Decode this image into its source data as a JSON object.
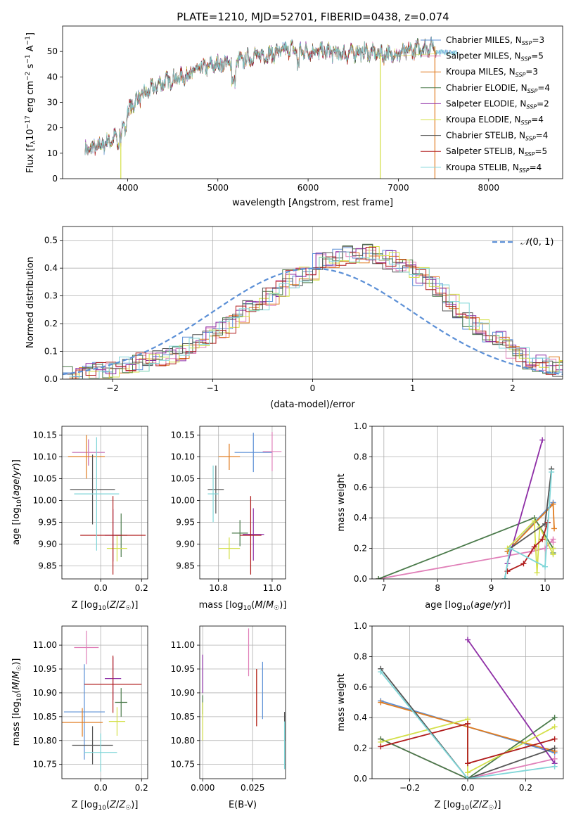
{
  "figure_title": "PLATE=1210, MJD=52701, FIBERID=0438, z=0.074",
  "colors": {
    "Chabrier MILES": "#5b8fd6",
    "Salpeter MILES": "#e07fb8",
    "Kroupa MILES": "#e07c20",
    "Chabrier ELODIE": "#4a7a4a",
    "Salpeter ELODIE": "#8e2ea6",
    "Kroupa ELODIE": "#d4e04a",
    "Chabrier STELIB": "#555555",
    "Salpeter STELIB": "#b01c1c",
    "Kroupa STELIB": "#7fd6d8"
  },
  "chart_data": [
    {
      "id": "spectrum",
      "type": "line",
      "title": "PLATE=1210, MJD=52701, FIBERID=0438, z=0.074",
      "xlabel": "wavelength [Angstrom, rest frame]",
      "ylabel": "Flux [f_λ 10^-17 erg cm^-2 s^-1 A^-1]",
      "xlim": [
        3280,
        8820
      ],
      "ylim": [
        0,
        60
      ],
      "xticks": [
        4000,
        5000,
        6000,
        7000,
        8000
      ],
      "yticks": [
        0,
        10,
        20,
        30,
        40,
        50
      ],
      "legend_position": "top-right",
      "series": [
        {
          "name": "Chabrier MILES, N_SSP=3"
        },
        {
          "name": "Salpeter MILES, N_SSP=5"
        },
        {
          "name": "Kroupa MILES, N_SSP=3"
        },
        {
          "name": "Chabrier ELODIE, N_SSP=4"
        },
        {
          "name": "Salpeter ELODIE, N_SSP=2"
        },
        {
          "name": "Kroupa ELODIE, N_SSP=4"
        },
        {
          "name": "Chabrier STELIB, N_SSP=4"
        },
        {
          "name": "Salpeter STELIB, N_SSP=5"
        },
        {
          "name": "Kroupa STELIB, N_SSP=4"
        }
      ],
      "continuum": {
        "x": [
          3530,
          3700,
          3900,
          4000,
          4100,
          4250,
          4400,
          4600,
          4800,
          5000,
          5200,
          5400,
          5600,
          5800,
          6000,
          6200,
          6400,
          6600,
          6800,
          7000,
          7200,
          7400,
          7700,
          8000,
          8300,
          8700
        ],
        "y": [
          11,
          13,
          17,
          26,
          31,
          35,
          38,
          40,
          43,
          45,
          46,
          48,
          49,
          51,
          50,
          50,
          49,
          50,
          49,
          49,
          51,
          52,
          53,
          54,
          54,
          55
        ]
      },
      "dips": [
        [
          3930,
          4
        ],
        [
          5175,
          30
        ],
        [
          5890,
          44
        ],
        [
          6800,
          0
        ],
        [
          7400,
          0
        ]
      ]
    },
    {
      "id": "residuals",
      "type": "line",
      "xlabel": "(data-model)/error",
      "ylabel": "Normed distribution",
      "xlim": [
        -2.5,
        2.5
      ],
      "ylim": [
        0,
        0.55
      ],
      "xticks": [
        -2,
        -1,
        0,
        1,
        2
      ],
      "yticks": [
        0.0,
        0.1,
        0.2,
        0.3,
        0.4,
        0.5
      ],
      "legend": "N(0,1)",
      "hist_bin_width": 0.1,
      "hist_base": [
        0.02,
        0.02,
        0.025,
        0.03,
        0.04,
        0.05,
        0.05,
        0.06,
        0.07,
        0.08,
        0.09,
        0.1,
        0.12,
        0.14,
        0.16,
        0.18,
        0.2,
        0.23,
        0.26,
        0.28,
        0.3,
        0.33,
        0.36,
        0.37,
        0.38,
        0.42,
        0.43,
        0.44,
        0.45,
        0.44,
        0.46,
        0.45,
        0.43,
        0.41,
        0.4,
        0.37,
        0.35,
        0.31,
        0.28,
        0.24,
        0.21,
        0.18,
        0.16,
        0.14,
        0.11,
        0.09,
        0.07,
        0.06,
        0.05,
        0.04
      ],
      "hist_x0": -2.5
    },
    {
      "id": "age-vs-Z",
      "type": "scatter",
      "xlabel": "Z [log10(Z/Z☉)]",
      "ylabel": "age  [log10(age/yr)]",
      "xlim": [
        -0.19,
        0.23
      ],
      "ylim": [
        9.82,
        10.17
      ],
      "xticks": [
        -0.2,
        0.0,
        0.2
      ],
      "xticklabels": [
        "",
        "0.0",
        "0.2"
      ],
      "yticks": [
        9.85,
        9.9,
        9.95,
        10.0,
        10.05,
        10.1,
        10.15
      ],
      "points": [
        {
          "series": "Chabrier MILES",
          "x": -0.06,
          "y": 10.11,
          "xerr": 0.08,
          "yerr": 0.03
        },
        {
          "series": "Salpeter MILES",
          "x": -0.06,
          "y": 10.11,
          "xerr": 0.08,
          "yerr": 0.03
        },
        {
          "series": "Kroupa MILES",
          "x": -0.07,
          "y": 10.1,
          "xerr": 0.09,
          "yerr": 0.05
        },
        {
          "series": "Chabrier ELODIE",
          "x": 0.1,
          "y": 9.92,
          "xerr": 0.03,
          "yerr": 0.05
        },
        {
          "series": "Salpeter ELODIE",
          "x": 0.06,
          "y": 9.92,
          "xerr": 0.04,
          "yerr": 0.06
        },
        {
          "series": "Kroupa ELODIE",
          "x": 0.08,
          "y": 9.89,
          "xerr": 0.05,
          "yerr": 0.03
        },
        {
          "series": "Chabrier STELIB",
          "x": -0.04,
          "y": 10.025,
          "xerr": 0.11,
          "yerr": 0.08
        },
        {
          "series": "Salpeter STELIB",
          "x": 0.06,
          "y": 9.92,
          "xerr": 0.16,
          "yerr": 0.09
        },
        {
          "series": "Kroupa STELIB",
          "x": -0.02,
          "y": 10.015,
          "xerr": 0.11,
          "yerr": 0.13
        }
      ]
    },
    {
      "id": "age-vs-mass",
      "type": "scatter",
      "xlabel": "mass [log10(M/M☉)]",
      "xlim": [
        10.73,
        11.05
      ],
      "ylim": [
        9.82,
        10.17
      ],
      "xticks": [
        10.8,
        11.0
      ],
      "yticks": [
        9.85,
        9.9,
        9.95,
        10.0,
        10.05,
        10.1,
        10.15
      ],
      "points": [
        {
          "series": "Chabrier MILES",
          "x": 10.93,
          "y": 10.11,
          "xerr": 0.07,
          "yerr": 0.045
        },
        {
          "series": "Salpeter MILES",
          "x": 11.0,
          "y": 10.112,
          "xerr": 0.035,
          "yerr": 0.045
        },
        {
          "series": "Kroupa MILES",
          "x": 10.84,
          "y": 10.1,
          "xerr": 0.04,
          "yerr": 0.03
        },
        {
          "series": "Chabrier ELODIE",
          "x": 10.88,
          "y": 9.925,
          "xerr": 0.03,
          "yerr": 0.03
        },
        {
          "series": "Salpeter ELODIE",
          "x": 10.93,
          "y": 9.922,
          "xerr": 0.04,
          "yerr": 0.06
        },
        {
          "series": "Kroupa ELODIE",
          "x": 10.84,
          "y": 9.89,
          "xerr": 0.04,
          "yerr": 0.025
        },
        {
          "series": "Chabrier STELIB",
          "x": 10.79,
          "y": 10.025,
          "xerr": 0.03,
          "yerr": 0.055
        },
        {
          "series": "Salpeter STELIB",
          "x": 10.92,
          "y": 9.92,
          "xerr": 0.04,
          "yerr": 0.09
        },
        {
          "series": "Kroupa STELIB",
          "x": 10.78,
          "y": 10.015,
          "xerr": 0.02,
          "yerr": 0.065
        }
      ]
    },
    {
      "id": "weight-vs-age",
      "type": "line",
      "xlabel": "age  [log10(age/yr)]",
      "ylabel": "mass weight",
      "xlim": [
        6.78,
        10.34
      ],
      "ylim": [
        0,
        1.0
      ],
      "xticks": [
        7,
        8,
        9,
        10
      ],
      "yticks": [
        0.0,
        0.2,
        0.4,
        0.6,
        0.8,
        1.0
      ],
      "series": [
        {
          "name": "Chabrier MILES",
          "x": [
            9.3,
            10.15
          ],
          "y": [
            0.18,
            0.5
          ]
        },
        {
          "name": "Salpeter MILES",
          "x": [
            6.9,
            9.75,
            10.0,
            10.15,
            10.15
          ],
          "y": [
            0.0,
            0.18,
            0.2,
            0.26,
            0.24
          ]
        },
        {
          "name": "Kroupa MILES",
          "x": [
            9.3,
            10.15,
            10.17
          ],
          "y": [
            0.18,
            0.49,
            0.33
          ]
        },
        {
          "name": "Chabrier ELODIE",
          "x": [
            6.9,
            9.8,
            10.15,
            10.15
          ],
          "y": [
            0.0,
            0.4,
            0.2,
            0.17
          ]
        },
        {
          "name": "Salpeter ELODIE",
          "x": [
            9.3,
            9.95
          ],
          "y": [
            0.1,
            0.91
          ]
        },
        {
          "name": "Kroupa ELODIE",
          "x": [
            9.3,
            9.8,
            9.85,
            9.9,
            10.15,
            10.15
          ],
          "y": [
            0.2,
            0.38,
            0.04,
            0.34,
            0.16,
            0.2
          ]
        },
        {
          "name": "Chabrier STELIB",
          "x": [
            9.25,
            9.35,
            10.0,
            10.12
          ],
          "y": [
            0.0,
            0.2,
            0.36,
            0.72
          ]
        },
        {
          "name": "Salpeter STELIB",
          "x": [
            9.3,
            9.6,
            9.8,
            9.95,
            10.05
          ],
          "y": [
            0.05,
            0.1,
            0.21,
            0.26,
            0.37
          ]
        },
        {
          "name": "Kroupa STELIB",
          "x": [
            9.25,
            9.35,
            10.0,
            10.12
          ],
          "y": [
            0.0,
            0.2,
            0.08,
            0.7
          ]
        }
      ]
    },
    {
      "id": "mass-vs-Z",
      "type": "scatter",
      "xlabel": "Z [log10(Z/Z☉)]",
      "ylabel": "mass [log10(M/M☉)]",
      "xlim": [
        -0.19,
        0.23
      ],
      "ylim": [
        10.72,
        11.04
      ],
      "xticks": [
        -0.2,
        0.0,
        0.2
      ],
      "xticklabels": [
        "",
        "0.0",
        "0.2"
      ],
      "yticks": [
        10.75,
        10.8,
        10.85,
        10.9,
        10.95,
        11.0
      ],
      "points": [
        {
          "series": "Chabrier MILES",
          "x": -0.08,
          "y": 10.86,
          "xerr": 0.1,
          "yerr": 0.1
        },
        {
          "series": "Salpeter MILES",
          "x": -0.07,
          "y": 10.995,
          "xerr": 0.06,
          "yerr": 0.035
        },
        {
          "series": "Kroupa MILES",
          "x": -0.09,
          "y": 10.838,
          "xerr": 0.1,
          "yerr": 0.03
        },
        {
          "series": "Chabrier ELODIE",
          "x": 0.1,
          "y": 10.88,
          "xerr": 0.03,
          "yerr": 0.03
        },
        {
          "series": "Salpeter ELODIE",
          "x": 0.06,
          "y": 10.93,
          "xerr": 0.04,
          "yerr": 0.045
        },
        {
          "series": "Kroupa ELODIE",
          "x": 0.08,
          "y": 10.84,
          "xerr": 0.04,
          "yerr": 0.03
        },
        {
          "series": "Chabrier STELIB",
          "x": -0.04,
          "y": 10.79,
          "xerr": 0.1,
          "yerr": 0.04
        },
        {
          "series": "Salpeter STELIB",
          "x": 0.06,
          "y": 10.918,
          "xerr": 0.14,
          "yerr": 0.06
        },
        {
          "series": "Kroupa STELIB",
          "x": 0.0,
          "y": 10.775,
          "xerr": 0.08,
          "yerr": 0.04
        }
      ]
    },
    {
      "id": "mass-vs-ebv",
      "type": "scatter",
      "xlabel": "E(B-V)",
      "xlim": [
        -0.0015,
        0.0415
      ],
      "ylim": [
        10.72,
        11.04
      ],
      "xticks": [
        0.0,
        0.025
      ],
      "yticks": [
        10.75,
        10.8,
        10.85,
        10.9,
        10.95,
        11.0
      ],
      "points": [
        {
          "series": "Chabrier MILES",
          "x": 0.03,
          "y": 10.905,
          "xerr": 0,
          "yerr": 0.06
        },
        {
          "series": "Salpeter MILES",
          "x": 0.023,
          "y": 10.985,
          "xerr": 0,
          "yerr": 0.05
        },
        {
          "series": "Kroupa MILES",
          "x": 0.027,
          "y": 10.89,
          "xerr": 0,
          "yerr": 0.06
        },
        {
          "series": "Chabrier ELODIE",
          "x": 0.0,
          "y": 10.875,
          "xerr": 0,
          "yerr": 0.02
        },
        {
          "series": "Salpeter ELODIE",
          "x": 0.0,
          "y": 10.94,
          "xerr": 0,
          "yerr": 0.04
        },
        {
          "series": "Kroupa ELODIE",
          "x": 0.0,
          "y": 10.84,
          "xerr": 0,
          "yerr": 0.04
        },
        {
          "series": "Chabrier STELIB",
          "x": 0.041,
          "y": 10.83,
          "xerr": 0,
          "yerr": 0.03
        },
        {
          "series": "Salpeter STELIB",
          "x": 0.027,
          "y": 10.89,
          "xerr": 0,
          "yerr": 0.06
        },
        {
          "series": "Kroupa STELIB",
          "x": 0.041,
          "y": 10.79,
          "xerr": 0,
          "yerr": 0.05
        }
      ]
    },
    {
      "id": "weight-vs-Z",
      "type": "line",
      "xlabel": "Z [log10(Z/Z☉)]",
      "ylabel": "mass weight",
      "xlim": [
        -0.33,
        0.33
      ],
      "ylim": [
        0,
        1.0
      ],
      "xticks": [
        -0.2,
        0.0,
        0.2
      ],
      "yticks": [
        0.0,
        0.2,
        0.4,
        0.6,
        0.8,
        1.0
      ],
      "series": [
        {
          "name": "Chabrier MILES",
          "x": [
            -0.3,
            0.3
          ],
          "y": [
            0.51,
            0.17
          ]
        },
        {
          "name": "Salpeter MILES",
          "x": [
            -0.3,
            0.0,
            0.3
          ],
          "y": [
            0.26,
            0.0,
            0.13
          ]
        },
        {
          "name": "Kroupa MILES",
          "x": [
            -0.3,
            0.3
          ],
          "y": [
            0.5,
            0.18
          ]
        },
        {
          "name": "Chabrier ELODIE",
          "x": [
            -0.3,
            0.0,
            0.3
          ],
          "y": [
            0.26,
            0.0,
            0.4
          ]
        },
        {
          "name": "Salpeter ELODIE",
          "x": [
            0.0,
            0.3
          ],
          "y": [
            0.91,
            0.1
          ]
        },
        {
          "name": "Kroupa ELODIE",
          "x": [
            -0.3,
            0.0,
            0.0,
            0.3
          ],
          "y": [
            0.24,
            0.39,
            0.04,
            0.34
          ]
        },
        {
          "name": "Chabrier STELIB",
          "x": [
            -0.3,
            0.0,
            0.3
          ],
          "y": [
            0.72,
            0.0,
            0.2
          ]
        },
        {
          "name": "Salpeter STELIB",
          "x": [
            -0.3,
            0.0,
            0.0,
            0.3
          ],
          "y": [
            0.21,
            0.36,
            0.1,
            0.26
          ]
        },
        {
          "name": "Kroupa STELIB",
          "x": [
            -0.3,
            0.0,
            0.3
          ],
          "y": [
            0.7,
            0.0,
            0.08
          ]
        }
      ]
    }
  ]
}
